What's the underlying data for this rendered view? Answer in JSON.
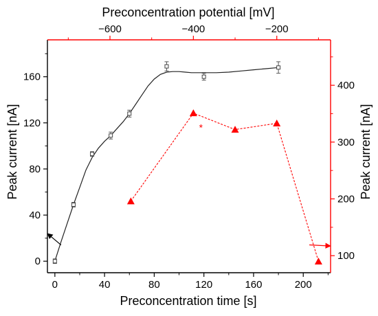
{
  "chart_data": {
    "type": "line",
    "xlabel_bottom": "Preconcentration time [s]",
    "xlabel_top": "Preconcentration potential [mV]",
    "ylabel_left": "Peak current [nA]",
    "ylabel_right": "Peak current [nA]",
    "xlim_bottom": [
      -6,
      222
    ],
    "xlim_top": [
      -750,
      -71
    ],
    "ylim_left": [
      -10,
      192
    ],
    "ylim_right": [
      70,
      480
    ],
    "xticks_bottom": [
      0,
      40,
      80,
      120,
      160,
      200
    ],
    "xticks_top": [
      -600,
      -400,
      -200
    ],
    "yticks_left": [
      0,
      40,
      80,
      120,
      160
    ],
    "yticks_right": [
      100,
      200,
      300,
      400
    ],
    "grid": false,
    "colors": {
      "left_series": "#222222",
      "right_series": "#ff0000",
      "left_axis": "#000000",
      "right_axis": "#ff0000"
    },
    "series": [
      {
        "axis": "left-bottom",
        "marker": "open-square",
        "x": [
          0,
          15,
          30,
          45,
          60,
          90,
          120,
          180
        ],
        "y": [
          0,
          49,
          93,
          109,
          128,
          169,
          160,
          168
        ],
        "error": [
          2,
          2,
          2,
          3,
          3,
          4,
          3,
          5
        ]
      },
      {
        "axis": "right-top",
        "marker": "filled-triangle",
        "x": [
          -550,
          -400,
          -300,
          -200,
          -100
        ],
        "y": [
          196,
          351,
          322,
          333,
          90
        ]
      }
    ],
    "fit_curve": {
      "axis": "left-bottom",
      "x": [
        0,
        5,
        10,
        15,
        20,
        25,
        30,
        35,
        40,
        45,
        50,
        55,
        60,
        65,
        70,
        75,
        80,
        85,
        90,
        95,
        100,
        105,
        110,
        115,
        120,
        130,
        140,
        150,
        160,
        170,
        180
      ],
      "y": [
        0,
        17,
        33,
        49,
        64,
        79,
        90,
        98,
        104,
        109,
        115,
        121,
        128,
        136,
        144,
        152,
        158,
        162,
        164,
        164.5,
        164.5,
        164,
        163.5,
        163.5,
        163.5,
        163.5,
        164,
        165,
        166,
        167,
        168
      ]
    },
    "annotations": [
      {
        "text": "*",
        "axis": "right-top",
        "x": -382,
        "y": 327
      }
    ],
    "arrows": [
      {
        "axis": "left-bottom",
        "from_x": 5,
        "from_y": 14,
        "to_x": -6,
        "to_y": 24
      },
      {
        "axis": "right-top",
        "from_x": -122,
        "from_y": 119,
        "to_x": -71,
        "to_y": 117
      }
    ]
  }
}
